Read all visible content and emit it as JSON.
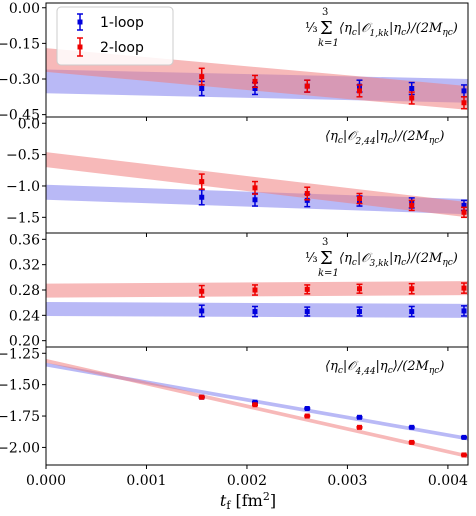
{
  "colors": {
    "loop1": "#0000dd",
    "loop2": "#ee0000",
    "band1": "#8080ee",
    "band2": "#f08080"
  },
  "legend": {
    "items": [
      "1-loop",
      "2-loop"
    ]
  },
  "xlabel": "t_f [fm²]",
  "xticks": [
    "0.000",
    "0.001",
    "0.002",
    "0.003",
    "0.004"
  ],
  "xlim": [
    0.0,
    0.0042
  ],
  "panels": [
    {
      "title": "⅓ Σ_{k=1}^{3} ⟨η_c|O^{MS}_{1,kk}|η_c⟩/(2M_ηc)",
      "ylim": [
        -0.46,
        0.02
      ],
      "yticks": [
        0.0,
        -0.15,
        -0.3,
        -0.45
      ],
      "ytick_labels": [
        "0.00",
        "−0.15",
        "−0.30",
        "−0.45"
      ]
    },
    {
      "title": "⟨η_c|O^{MS}_{2,44}|η_c⟩/(2M_ηc)",
      "ylim": [
        -1.75,
        0.1
      ],
      "yticks": [
        0.0,
        -0.5,
        -1.0,
        -1.5
      ],
      "ytick_labels": [
        "0.0",
        "−0.5",
        "−1.0",
        "−1.5"
      ]
    },
    {
      "title": "⅓ Σ_{k=1}^{3} ⟨η_c|O^{MS}_{3,kk}|η_c⟩/(2M_ηc)",
      "ylim": [
        0.19,
        0.37
      ],
      "yticks": [
        0.36,
        0.32,
        0.28,
        0.24,
        0.2
      ],
      "ytick_labels": [
        "0.36",
        "0.32",
        "0.28",
        "0.24",
        "0.20"
      ]
    },
    {
      "title": "⟨η_c|O^{MS}_{4,44}|η_c⟩/(2M_ηc)",
      "ylim": [
        -2.14,
        -1.2
      ],
      "yticks": [
        -1.25,
        -1.5,
        -1.75,
        -2.0
      ],
      "ytick_labels": [
        "−1.25",
        "−1.50",
        "−1.75",
        "−2.00"
      ]
    }
  ],
  "chart_data": [
    {
      "type": "scatter",
      "x": [
        0.00155,
        0.00208,
        0.0026,
        0.00312,
        0.00364,
        0.00416
      ],
      "series": [
        {
          "name": "1-loop",
          "values": [
            -0.34,
            -0.34,
            -0.33,
            -0.33,
            -0.34,
            -0.35
          ],
          "errors": [
            0.03,
            0.025,
            0.025,
            0.025,
            0.025,
            0.025
          ],
          "band": {
            "center_at_0": -0.31,
            "center_at_end": -0.35,
            "halfwidth": 0.05
          }
        },
        {
          "name": "2-loop",
          "values": [
            -0.29,
            -0.31,
            -0.33,
            -0.35,
            -0.38,
            -0.4
          ],
          "errors": [
            0.035,
            0.025,
            0.025,
            0.025,
            0.025,
            0.025
          ],
          "band": {
            "center_at_0": -0.22,
            "center_at_end": -0.38,
            "halfwidth": 0.05
          }
        }
      ]
    },
    {
      "type": "scatter",
      "x": [
        0.00155,
        0.00208,
        0.0026,
        0.00312,
        0.00364,
        0.00416
      ],
      "series": [
        {
          "name": "1-loop",
          "values": [
            -1.18,
            -1.22,
            -1.23,
            -1.24,
            -1.27,
            -1.31
          ],
          "errors": [
            0.12,
            0.1,
            0.1,
            0.08,
            0.08,
            0.08
          ],
          "band": {
            "center_at_0": -1.1,
            "center_at_end": -1.33,
            "halfwidth": 0.12
          }
        },
        {
          "name": "2-loop",
          "values": [
            -0.93,
            -1.03,
            -1.12,
            -1.2,
            -1.31,
            -1.42
          ],
          "errors": [
            0.12,
            0.1,
            0.1,
            0.08,
            0.08,
            0.08
          ],
          "band": {
            "center_at_0": -0.58,
            "center_at_end": -1.38,
            "halfwidth": 0.12
          }
        }
      ]
    },
    {
      "type": "scatter",
      "x": [
        0.00155,
        0.00208,
        0.0026,
        0.00312,
        0.00364,
        0.00416
      ],
      "series": [
        {
          "name": "1-loop",
          "values": [
            0.247,
            0.246,
            0.246,
            0.246,
            0.246,
            0.247
          ],
          "errors": [
            0.009,
            0.008,
            0.007,
            0.007,
            0.008,
            0.008
          ],
          "band": {
            "center_at_0": 0.25,
            "center_at_end": 0.247,
            "halfwidth": 0.011
          }
        },
        {
          "name": "2-loop",
          "values": [
            0.278,
            0.28,
            0.281,
            0.282,
            0.282,
            0.283
          ],
          "errors": [
            0.009,
            0.008,
            0.007,
            0.007,
            0.008,
            0.008
          ],
          "band": {
            "center_at_0": 0.279,
            "center_at_end": 0.283,
            "halfwidth": 0.011
          }
        }
      ]
    },
    {
      "type": "scatter",
      "x": [
        0.00155,
        0.00208,
        0.0026,
        0.00312,
        0.00364,
        0.00416
      ],
      "series": [
        {
          "name": "1-loop",
          "values": [
            -1.6,
            -1.64,
            -1.69,
            -1.76,
            -1.84,
            -1.92
          ],
          "errors": [
            0.005,
            0.005,
            0.005,
            0.005,
            0.005,
            0.005
          ],
          "band": {
            "center_at_0": -1.34,
            "center_at_end": -1.93,
            "halfwidth": 0.015
          }
        },
        {
          "name": "2-loop",
          "values": [
            -1.6,
            -1.66,
            -1.75,
            -1.84,
            -1.96,
            -2.06
          ],
          "errors": [
            0.005,
            0.005,
            0.005,
            0.005,
            0.005,
            0.005
          ],
          "band": {
            "center_at_0": -1.31,
            "center_at_end": -2.07,
            "halfwidth": 0.015
          }
        }
      ]
    }
  ]
}
